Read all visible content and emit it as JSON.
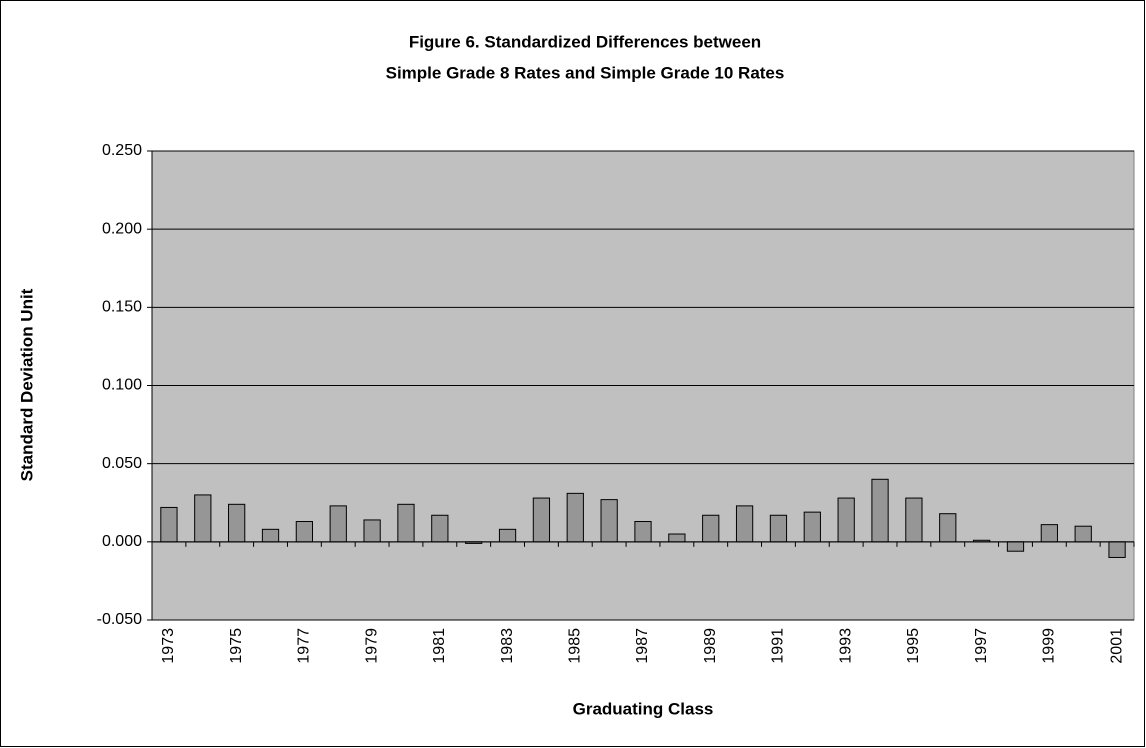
{
  "chart_data": {
    "type": "bar",
    "title": [
      "Figure 6. Standardized Differences between",
      "Simple Grade 8 Rates and Simple Grade 10 Rates"
    ],
    "x_label": "Graduating Class",
    "y_label": "Standard Deviation Unit",
    "categories": [
      "1973",
      null,
      "1975",
      null,
      "1977",
      null,
      "1979",
      null,
      "1981",
      null,
      "1983",
      null,
      "1985",
      null,
      "1987",
      null,
      "1989",
      null,
      "1991",
      null,
      "1993",
      null,
      "1995",
      null,
      "1997",
      null,
      "1999",
      null,
      "2001"
    ],
    "values": [
      0.022,
      0.03,
      0.024,
      0.008,
      0.013,
      0.023,
      0.014,
      0.024,
      0.017,
      -0.001,
      0.008,
      0.028,
      0.031,
      0.027,
      0.013,
      0.005,
      0.017,
      0.023,
      0.017,
      0.019,
      0.028,
      0.04,
      0.028,
      0.018,
      0.001,
      -0.006,
      0.011,
      0.01,
      -0.01
    ],
    "color": "#969696",
    "plot_background": "#c0c0c0",
    "ylim": [
      -0.05,
      0.25
    ],
    "yticks": [
      {
        "value": -0.05,
        "label": "-0.050"
      },
      {
        "value": 0,
        "label": "0.000"
      },
      {
        "value": 0.05,
        "label": "0.050"
      },
      {
        "value": 0.1,
        "label": "0.100"
      },
      {
        "value": 0.15,
        "label": "0.150"
      },
      {
        "value": 0.2,
        "label": "0.200"
      },
      {
        "value": 0.25,
        "label": "0.250"
      }
    ],
    "grid": true
  }
}
